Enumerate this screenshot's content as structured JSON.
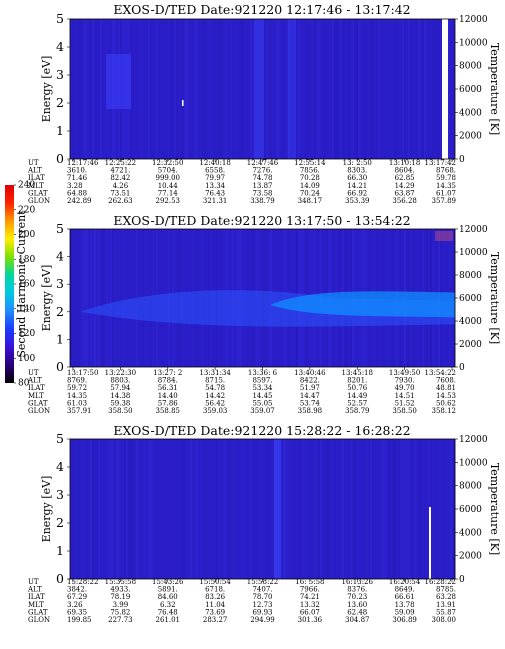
{
  "colors": {
    "background": "#2a1ec8",
    "colorbar": [
      "#000000",
      "#2b007a",
      "#3a10d8",
      "#1a3cff",
      "#1f8cff",
      "#00c8e6",
      "#00d6a0",
      "#7ae000",
      "#ffee00",
      "#ff9a00",
      "#ff2200",
      "#e00000"
    ]
  },
  "colorbar": {
    "label": "Second Harmonic Current",
    "ticks": [
      "80",
      "100",
      "120",
      "140",
      "160",
      "180",
      "200",
      "220",
      "240"
    ]
  },
  "chart_data": [
    {
      "type": "heatmap",
      "title": "EXOS-D/TED   Date:921220   12:17:46 - 13:17:42",
      "ylabel": "Energy [eV]",
      "y2label": "Temperature [K]",
      "ylim": [
        0,
        5
      ],
      "y2lim": [
        0,
        12000
      ],
      "yticks": [
        "0",
        "1",
        "2",
        "3",
        "4",
        "5"
      ],
      "y2ticks": [
        "0",
        "2000",
        "4000",
        "6000",
        "8000",
        "10000",
        "12000"
      ],
      "ephemeris_labels": [
        "UT",
        "ALT",
        "ILAT",
        "MLT",
        "GLAT",
        "GLON"
      ],
      "ephemeris": [
        [
          "12:17:46",
          "12:25:22",
          "12:32:50",
          "12:40:18",
          "12:47:46",
          "12:55:14",
          "13: 2:50",
          "13:10:18",
          "13:17:42"
        ],
        [
          "3610.",
          "4721.",
          "5704.",
          "6558.",
          "7276.",
          "7856.",
          "8303.",
          "8604.",
          "8768."
        ],
        [
          "71.46",
          "82.42",
          "999.00",
          "79.97",
          "74.78",
          "70.28",
          "66.30",
          "62.85",
          "59.78"
        ],
        [
          "3.28",
          "4.26",
          "10.44",
          "13.34",
          "13.87",
          "14.09",
          "14.21",
          "14.29",
          "14.35"
        ],
        [
          "64.88",
          "73.51",
          "77.14",
          "76.43",
          "73.58",
          "70.24",
          "66.92",
          "63.87",
          "61.07"
        ],
        [
          "242.89",
          "262.63",
          "292.53",
          "321.31",
          "338.79",
          "348.17",
          "353.39",
          "356.28",
          "357.89"
        ]
      ]
    },
    {
      "type": "heatmap",
      "title": "EXOS-D/TED   Date:921220   13:17:50 - 13:54:22",
      "ylabel": "Energy [eV]",
      "y2label": "Temperature [K]",
      "ylim": [
        0,
        5
      ],
      "y2lim": [
        0,
        12000
      ],
      "yticks": [
        "0",
        "1",
        "2",
        "3",
        "4",
        "5"
      ],
      "y2ticks": [
        "0",
        "2000",
        "4000",
        "6000",
        "8000",
        "10000",
        "12000"
      ],
      "ephemeris_labels": [
        "UT",
        "ALT",
        "ILAT",
        "MLT",
        "GLAT",
        "GLON"
      ],
      "ephemeris": [
        [
          "13:17:50",
          "13:22:30",
          "13:27: 2",
          "13:31:34",
          "13:36: 6",
          "13:40:46",
          "13:45:18",
          "13:49:50",
          "13:54:22"
        ],
        [
          "8769.",
          "8803.",
          "8784.",
          "8715.",
          "8597.",
          "8422.",
          "8201.",
          "7930.",
          "7608."
        ],
        [
          "59.72",
          "57.94",
          "56.31",
          "54.78",
          "53.34",
          "51.97",
          "50.76",
          "49.70",
          "48.81"
        ],
        [
          "14.35",
          "14.38",
          "14.40",
          "14.42",
          "14.45",
          "14.47",
          "14.49",
          "14.51",
          "14.53"
        ],
        [
          "61.03",
          "59.38",
          "57.86",
          "56.42",
          "55.05",
          "53.74",
          "52.57",
          "51.52",
          "50.62"
        ],
        [
          "357.91",
          "358.50",
          "358.85",
          "359.03",
          "359.07",
          "358.98",
          "358.79",
          "358.50",
          "358.12"
        ]
      ]
    },
    {
      "type": "heatmap",
      "title": "EXOS-D/TED   Date:921220   15:28:22 - 16:28:22",
      "ylabel": "Energy [eV]",
      "y2label": "Temperature [K]",
      "ylim": [
        0,
        5
      ],
      "y2lim": [
        0,
        12000
      ],
      "yticks": [
        "0",
        "1",
        "2",
        "3",
        "4",
        "5"
      ],
      "y2ticks": [
        "0",
        "2000",
        "4000",
        "6000",
        "8000",
        "10000",
        "12000"
      ],
      "ephemeris_labels": [
        "UT",
        "ALT",
        "ILAT",
        "MLT",
        "GLAT",
        "GLON"
      ],
      "ephemeris": [
        [
          "15:28:22",
          "15:35:58",
          "15:43:26",
          "15:50:54",
          "15:58:22",
          "16: 5:58",
          "16:13:26",
          "16:20:54",
          "16:28:22"
        ],
        [
          "3842.",
          "4933.",
          "5891.",
          "6718.",
          "7407.",
          "7966.",
          "8376.",
          "8649.",
          "8785."
        ],
        [
          "67.29",
          "78.19",
          "84.60",
          "83.26",
          "78.70",
          "74.21",
          "70.23",
          "66.61",
          "63.28"
        ],
        [
          "3.26",
          "3.99",
          "6.32",
          "11.04",
          "12.73",
          "13.32",
          "13.60",
          "13.78",
          "13.91"
        ],
        [
          "69.35",
          "75.82",
          "76.48",
          "73.69",
          "69.93",
          "66.07",
          "62.48",
          "59.09",
          "55.87"
        ],
        [
          "199.85",
          "227.73",
          "261.01",
          "283.27",
          "294.99",
          "301.36",
          "304.87",
          "306.89",
          "308.00"
        ]
      ]
    }
  ]
}
